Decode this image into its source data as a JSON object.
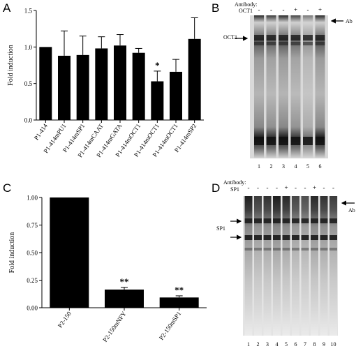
{
  "panels": {
    "A": {
      "letter": "A",
      "chart_data": {
        "type": "bar",
        "ylabel": "Fold induction",
        "ylim": [
          0,
          1.5
        ],
        "yticks": [
          "0.0",
          "0.5",
          "1.0",
          "1.5"
        ],
        "categories": [
          "P1-414",
          "P1-414mPU1",
          "P1-414mSP1",
          "P1-414mCAAT",
          "P1-414mGATA",
          "P1-414mOCT1",
          "P1-414mOCT1",
          "P1-414mOCT1",
          "P1-414mSP2"
        ],
        "values": [
          1.0,
          0.88,
          0.89,
          0.98,
          1.02,
          0.92,
          0.53,
          0.66,
          1.11
        ],
        "errors": [
          0.0,
          0.34,
          0.26,
          0.16,
          0.15,
          0.06,
          0.14,
          0.17,
          0.29
        ],
        "annotations": [
          "",
          "",
          "",
          "",
          "",
          "",
          "*",
          "",
          ""
        ],
        "bar_color": "#000000"
      }
    },
    "B": {
      "letter": "B",
      "antibody_label": "Antibody:",
      "antibody_name": "OCT1",
      "signs": [
        "-",
        "-",
        "-",
        "+",
        "-",
        "+"
      ],
      "band_label": "OCT1",
      "ab_label": "Ab",
      "lanes": [
        "1",
        "2",
        "3",
        "4",
        "5",
        "6"
      ]
    },
    "C": {
      "letter": "C",
      "chart_data": {
        "type": "bar",
        "ylabel": "Fold induction",
        "ylim": [
          0,
          1.0
        ],
        "yticks": [
          "0.00",
          "0.25",
          "0.50",
          "0.75",
          "1.00"
        ],
        "categories": [
          "P2-150",
          "P2-150mNFY",
          "P2-150mSP1"
        ],
        "values": [
          1.0,
          0.165,
          0.093
        ],
        "errors": [
          0.0,
          0.02,
          0.015
        ],
        "annotations": [
          "",
          "**",
          "**"
        ],
        "bar_color": "#000000"
      }
    },
    "D": {
      "letter": "D",
      "antibody_label": "Antibody:",
      "antibody_name": "SP1",
      "signs": [
        "-",
        "-",
        "-",
        "-",
        "+",
        "-",
        "-",
        "+",
        "-",
        "-"
      ],
      "band_label": "SP1",
      "ab_label": "Ab",
      "lanes": [
        "1",
        "2",
        "3",
        "4",
        "5",
        "6",
        "7",
        "8",
        "9",
        "10"
      ]
    }
  }
}
